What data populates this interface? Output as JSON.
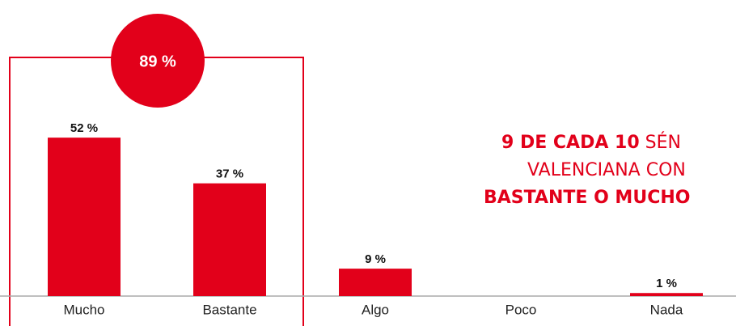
{
  "chart_data": {
    "type": "bar",
    "categories": [
      "Mucho",
      "Bastante",
      "Algo",
      "Poco",
      "Nada"
    ],
    "values": [
      52,
      37,
      9,
      0,
      1
    ],
    "value_labels": [
      "52 %",
      "37 %",
      "9 %",
      null,
      "1 %"
    ],
    "color": "#e2001a",
    "ylim": [
      0,
      60
    ],
    "highlight": {
      "label": "89 %"
    },
    "annotation": [
      [
        {
          "text": "9 DE CADA 10",
          "bold": true
        },
        {
          "text": " SÉN",
          "bold": false
        }
      ],
      [
        {
          "text": "VALENCIANA CON",
          "bold": false
        }
      ],
      [
        {
          "text": "BASTANTE O MUCHO",
          "bold": true
        }
      ]
    ]
  }
}
